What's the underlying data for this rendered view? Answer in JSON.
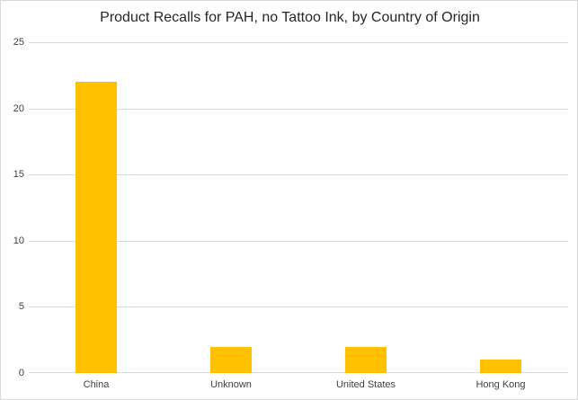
{
  "chart_data": {
    "type": "bar",
    "title": "Product Recalls for PAH, no Tattoo Ink, by Country of Origin",
    "categories": [
      "China",
      "Unknown",
      "United States",
      "Hong Kong"
    ],
    "values": [
      22,
      2,
      2,
      1
    ],
    "xlabel": "",
    "ylabel": "",
    "ylim": [
      0,
      25
    ],
    "yticks": [
      0,
      5,
      10,
      15,
      20,
      25
    ],
    "grid": "horizontal",
    "legend": "none"
  },
  "colors": {
    "bar": "#FFC000",
    "gridline": "#D9D9D9",
    "axis_line": "#D9D9D9",
    "title_text": "#262626",
    "tick_text": "#404040",
    "background": "#FFFFFF",
    "chart_border": "#D9D9D9"
  }
}
